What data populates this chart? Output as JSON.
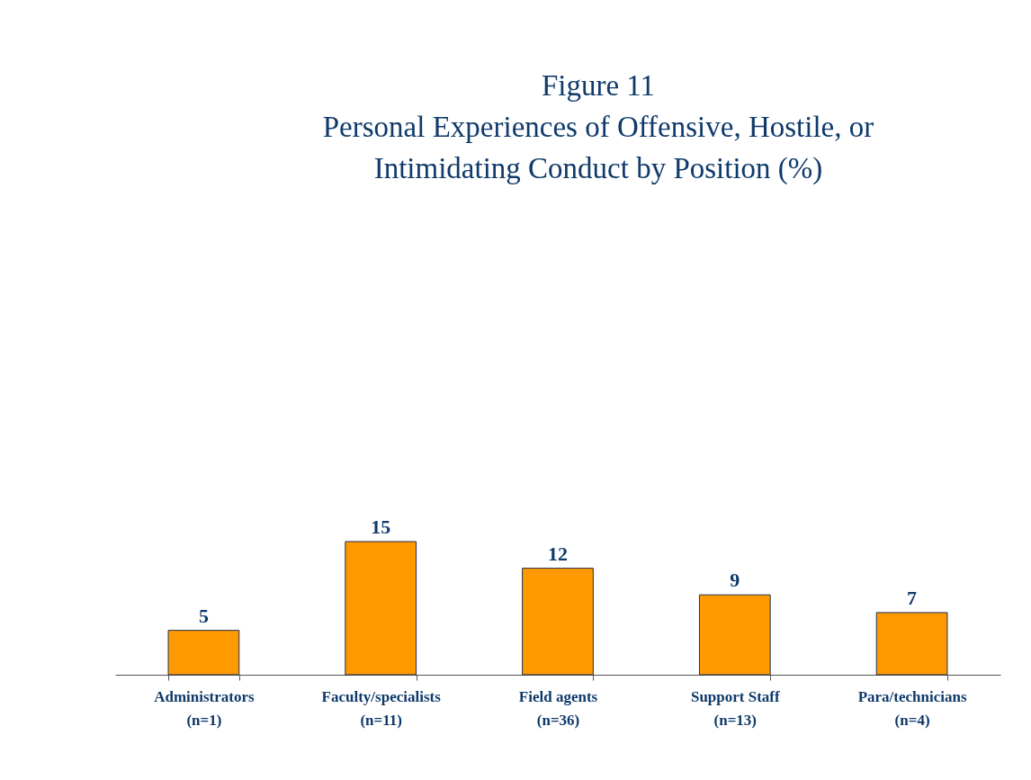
{
  "chart_data": {
    "type": "bar",
    "title": "Figure 11\nPersonal Experiences of Offensive, Hostile, or\nIntimidating Conduct by Position (%)",
    "categories": [
      "Administrators\n(n=1)",
      "Faculty/specialists\n(n=11)",
      "Field agents\n(n=36)",
      "Support Staff\n(n=13)",
      "Para/technicians\n(n=4)"
    ],
    "values": [
      5,
      15,
      12,
      9,
      7
    ],
    "color": "#ff9900",
    "data_labels": true,
    "grid": false
  }
}
